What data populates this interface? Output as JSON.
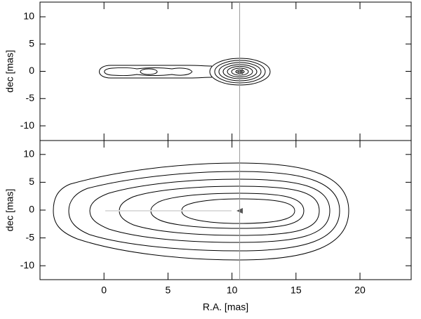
{
  "chart_data": [
    {
      "type": "contour",
      "ylabel": "dec [mas]",
      "xlim": [
        -5,
        24
      ],
      "xticks": [
        0,
        5,
        10,
        15,
        20
      ],
      "ylim": [
        -12.7,
        12.7
      ],
      "yticks": [
        -10,
        -5,
        0,
        5,
        10
      ],
      "vline": 10.6
    },
    {
      "type": "contour",
      "xlabel": "R.A. [mas]",
      "ylabel": "dec [mas]",
      "xlim": [
        -5,
        24
      ],
      "xticks": [
        0,
        5,
        10,
        15,
        20
      ],
      "ylim": [
        -12.5,
        12.5
      ],
      "yticks": [
        -10,
        -5,
        0,
        5,
        10
      ],
      "vline": 10.6
    }
  ]
}
